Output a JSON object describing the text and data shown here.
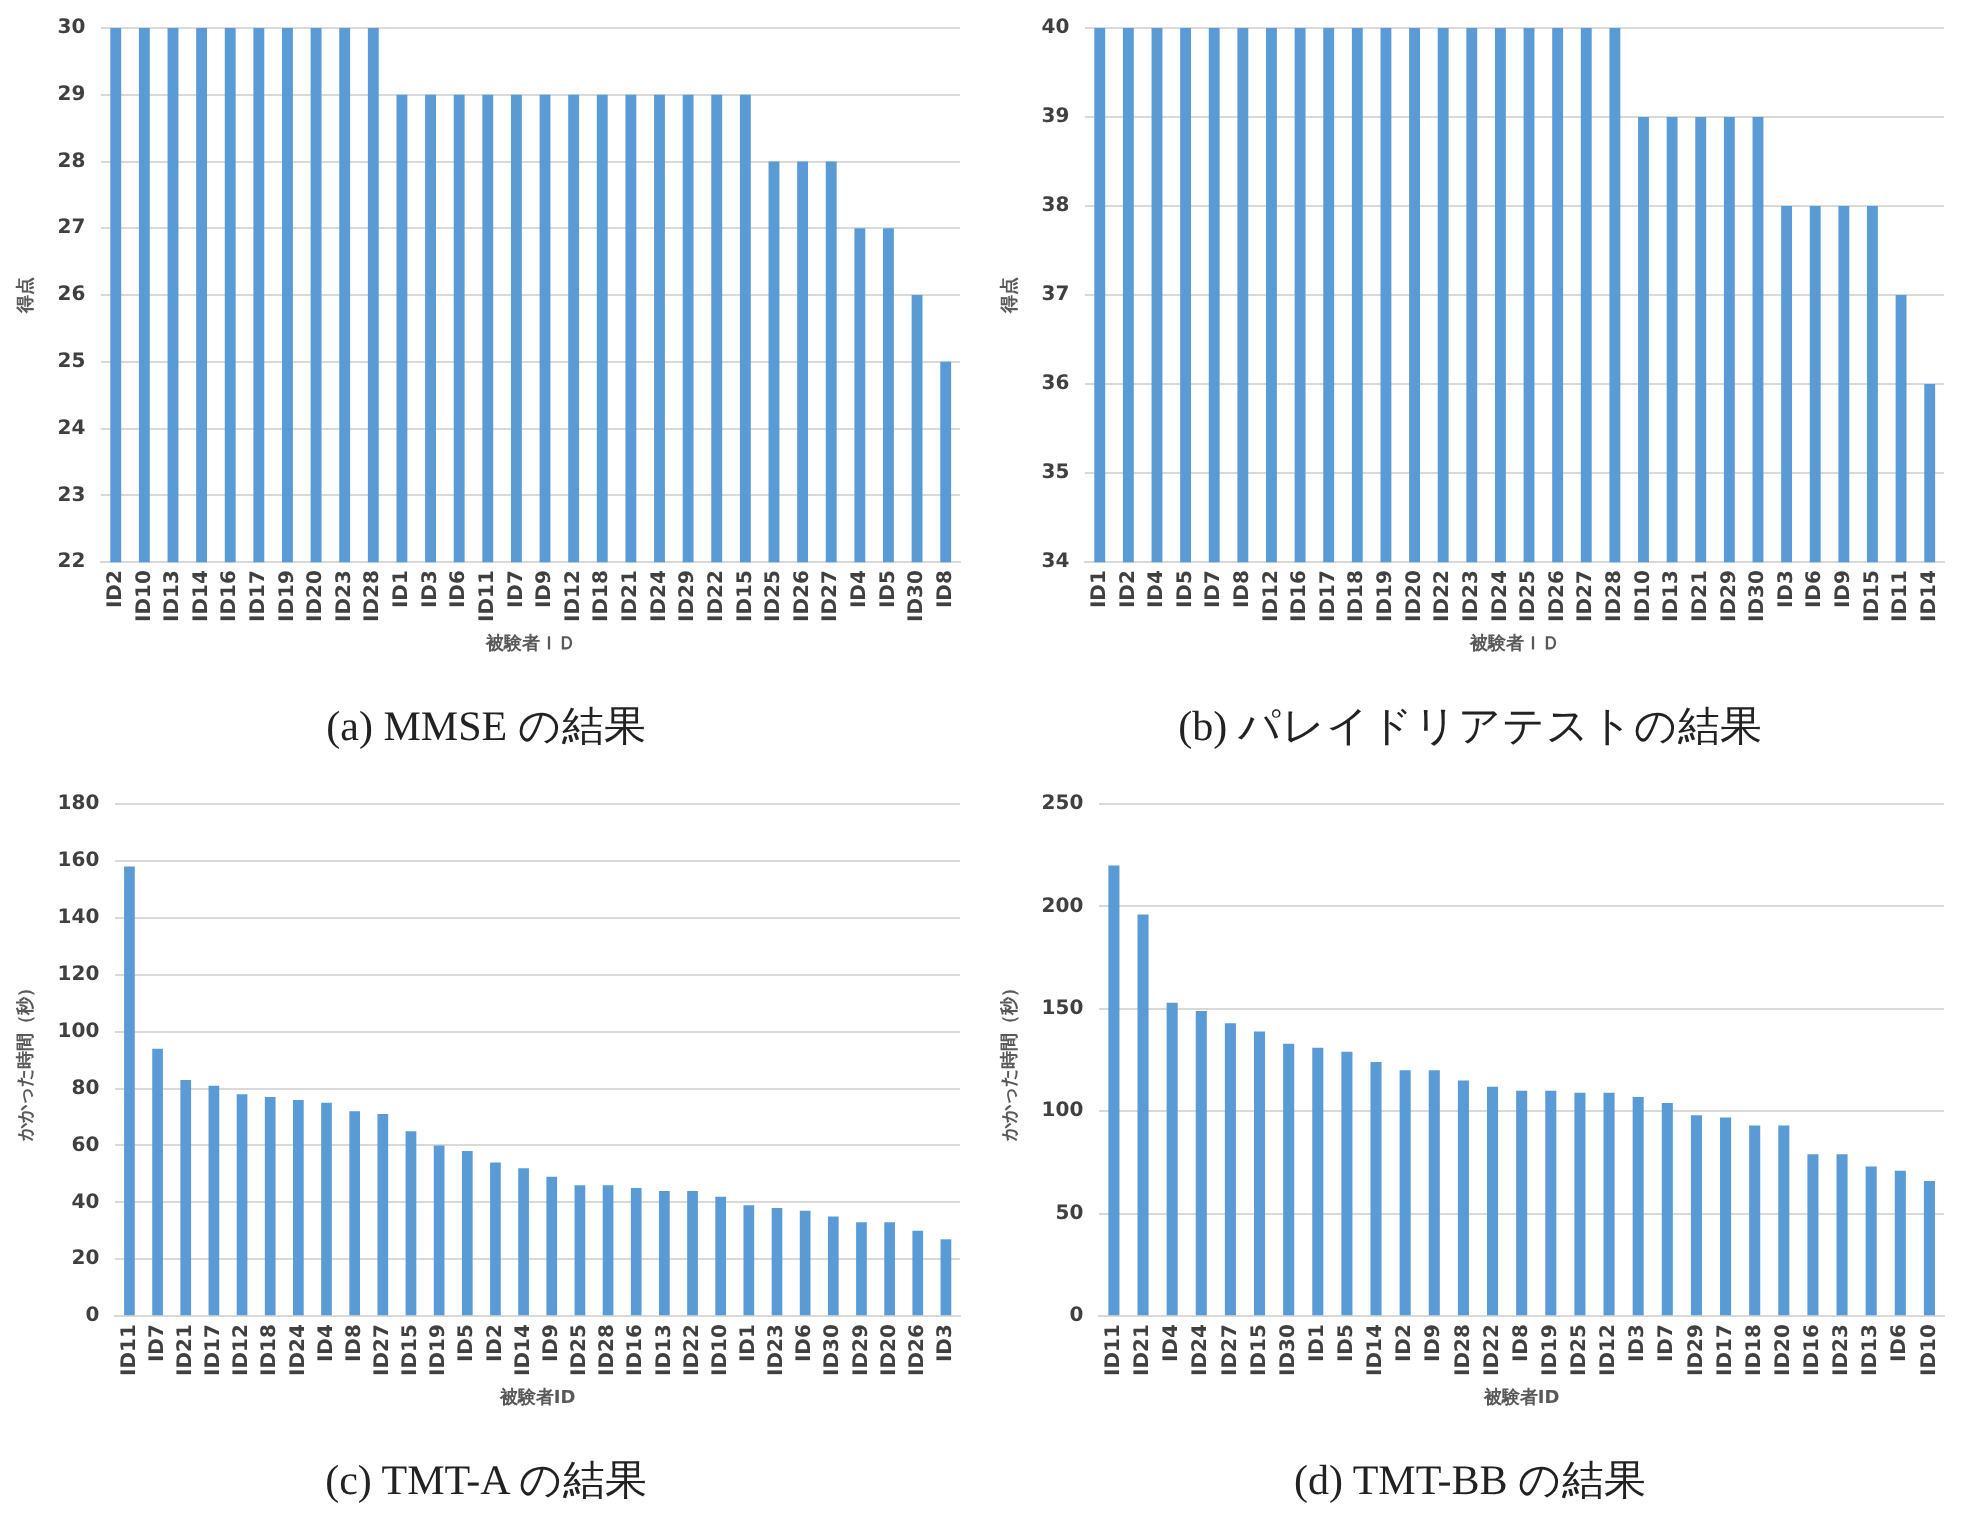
{
  "chart_data": [
    {
      "type": "bar",
      "title": "(a) MMSE の結果",
      "xlabel": "被験者ＩＤ",
      "ylabel": "得点",
      "color": "#5b9bd5",
      "ylim": [
        22,
        30
      ],
      "yticks": [
        22,
        23,
        24,
        25,
        26,
        27,
        28,
        29,
        30
      ],
      "grid": "y",
      "categories": [
        "ID2",
        "ID10",
        "ID13",
        "ID14",
        "ID16",
        "ID17",
        "ID19",
        "ID20",
        "ID23",
        "ID28",
        "ID1",
        "ID3",
        "ID6",
        "ID11",
        "ID7",
        "ID9",
        "ID12",
        "ID18",
        "ID21",
        "ID24",
        "ID29",
        "ID22",
        "ID15",
        "ID25",
        "ID26",
        "ID27",
        "ID4",
        "ID5",
        "ID30",
        "ID8"
      ],
      "values": [
        30,
        30,
        30,
        30,
        30,
        30,
        30,
        30,
        30,
        30,
        29,
        29,
        29,
        29,
        29,
        29,
        29,
        29,
        29,
        29,
        29,
        29,
        29,
        28,
        28,
        28,
        27,
        27,
        26,
        25
      ]
    },
    {
      "type": "bar",
      "title": "(b) パレイドリアテストの結果",
      "xlabel": "被験者ＩＤ",
      "ylabel": "得点",
      "color": "#5b9bd5",
      "ylim": [
        34,
        40
      ],
      "yticks": [
        34,
        35,
        36,
        37,
        38,
        39,
        40
      ],
      "grid": "y",
      "categories": [
        "ID1",
        "ID2",
        "ID4",
        "ID5",
        "ID7",
        "ID8",
        "ID12",
        "ID16",
        "ID17",
        "ID18",
        "ID19",
        "ID20",
        "ID22",
        "ID23",
        "ID24",
        "ID25",
        "ID26",
        "ID27",
        "ID28",
        "ID10",
        "ID13",
        "ID21",
        "ID29",
        "ID30",
        "ID3",
        "ID6",
        "ID9",
        "ID15",
        "ID11",
        "ID14"
      ],
      "values": [
        40,
        40,
        40,
        40,
        40,
        40,
        40,
        40,
        40,
        40,
        40,
        40,
        40,
        40,
        40,
        40,
        40,
        40,
        40,
        39,
        39,
        39,
        39,
        39,
        38,
        38,
        38,
        38,
        37,
        36
      ]
    },
    {
      "type": "bar",
      "title": "(c) TMT-A の結果",
      "xlabel": "被験者ID",
      "ylabel": "かかった時間（秒）",
      "color": "#5b9bd5",
      "ylim": [
        0,
        180
      ],
      "yticks": [
        0,
        20,
        40,
        60,
        80,
        100,
        120,
        140,
        160,
        180
      ],
      "grid": "y",
      "categories": [
        "ID11",
        "ID7",
        "ID21",
        "ID17",
        "ID12",
        "ID18",
        "ID24",
        "ID4",
        "ID8",
        "ID27",
        "ID15",
        "ID19",
        "ID5",
        "ID2",
        "ID14",
        "ID9",
        "ID25",
        "ID28",
        "ID16",
        "ID13",
        "ID22",
        "ID10",
        "ID1",
        "ID23",
        "ID6",
        "ID30",
        "ID29",
        "ID20",
        "ID26",
        "ID3"
      ],
      "values": [
        158,
        94,
        83,
        81,
        78,
        77,
        76,
        75,
        72,
        71,
        65,
        60,
        58,
        54,
        52,
        49,
        46,
        46,
        45,
        44,
        44,
        42,
        39,
        38,
        37,
        35,
        33,
        33,
        30,
        27
      ]
    },
    {
      "type": "bar",
      "title": "(d) TMT-BB の結果",
      "xlabel": "被験者ID",
      "ylabel": "かかった時間（秒）",
      "color": "#5b9bd5",
      "ylim": [
        0,
        250
      ],
      "yticks": [
        0,
        50,
        100,
        150,
        200,
        250
      ],
      "grid": "y",
      "categories": [
        "ID11",
        "ID21",
        "ID4",
        "ID24",
        "ID27",
        "ID15",
        "ID30",
        "ID1",
        "ID5",
        "ID14",
        "ID2",
        "ID9",
        "ID28",
        "ID22",
        "ID8",
        "ID19",
        "ID25",
        "ID12",
        "ID3",
        "ID7",
        "ID29",
        "ID17",
        "ID18",
        "ID20",
        "ID16",
        "ID23",
        "ID13",
        "ID6",
        "ID10"
      ],
      "values": [
        220,
        196,
        153,
        149,
        143,
        139,
        133,
        131,
        129,
        124,
        120,
        120,
        115,
        112,
        110,
        110,
        109,
        109,
        107,
        104,
        98,
        97,
        93,
        93,
        79,
        79,
        73,
        71,
        66
      ]
    }
  ]
}
